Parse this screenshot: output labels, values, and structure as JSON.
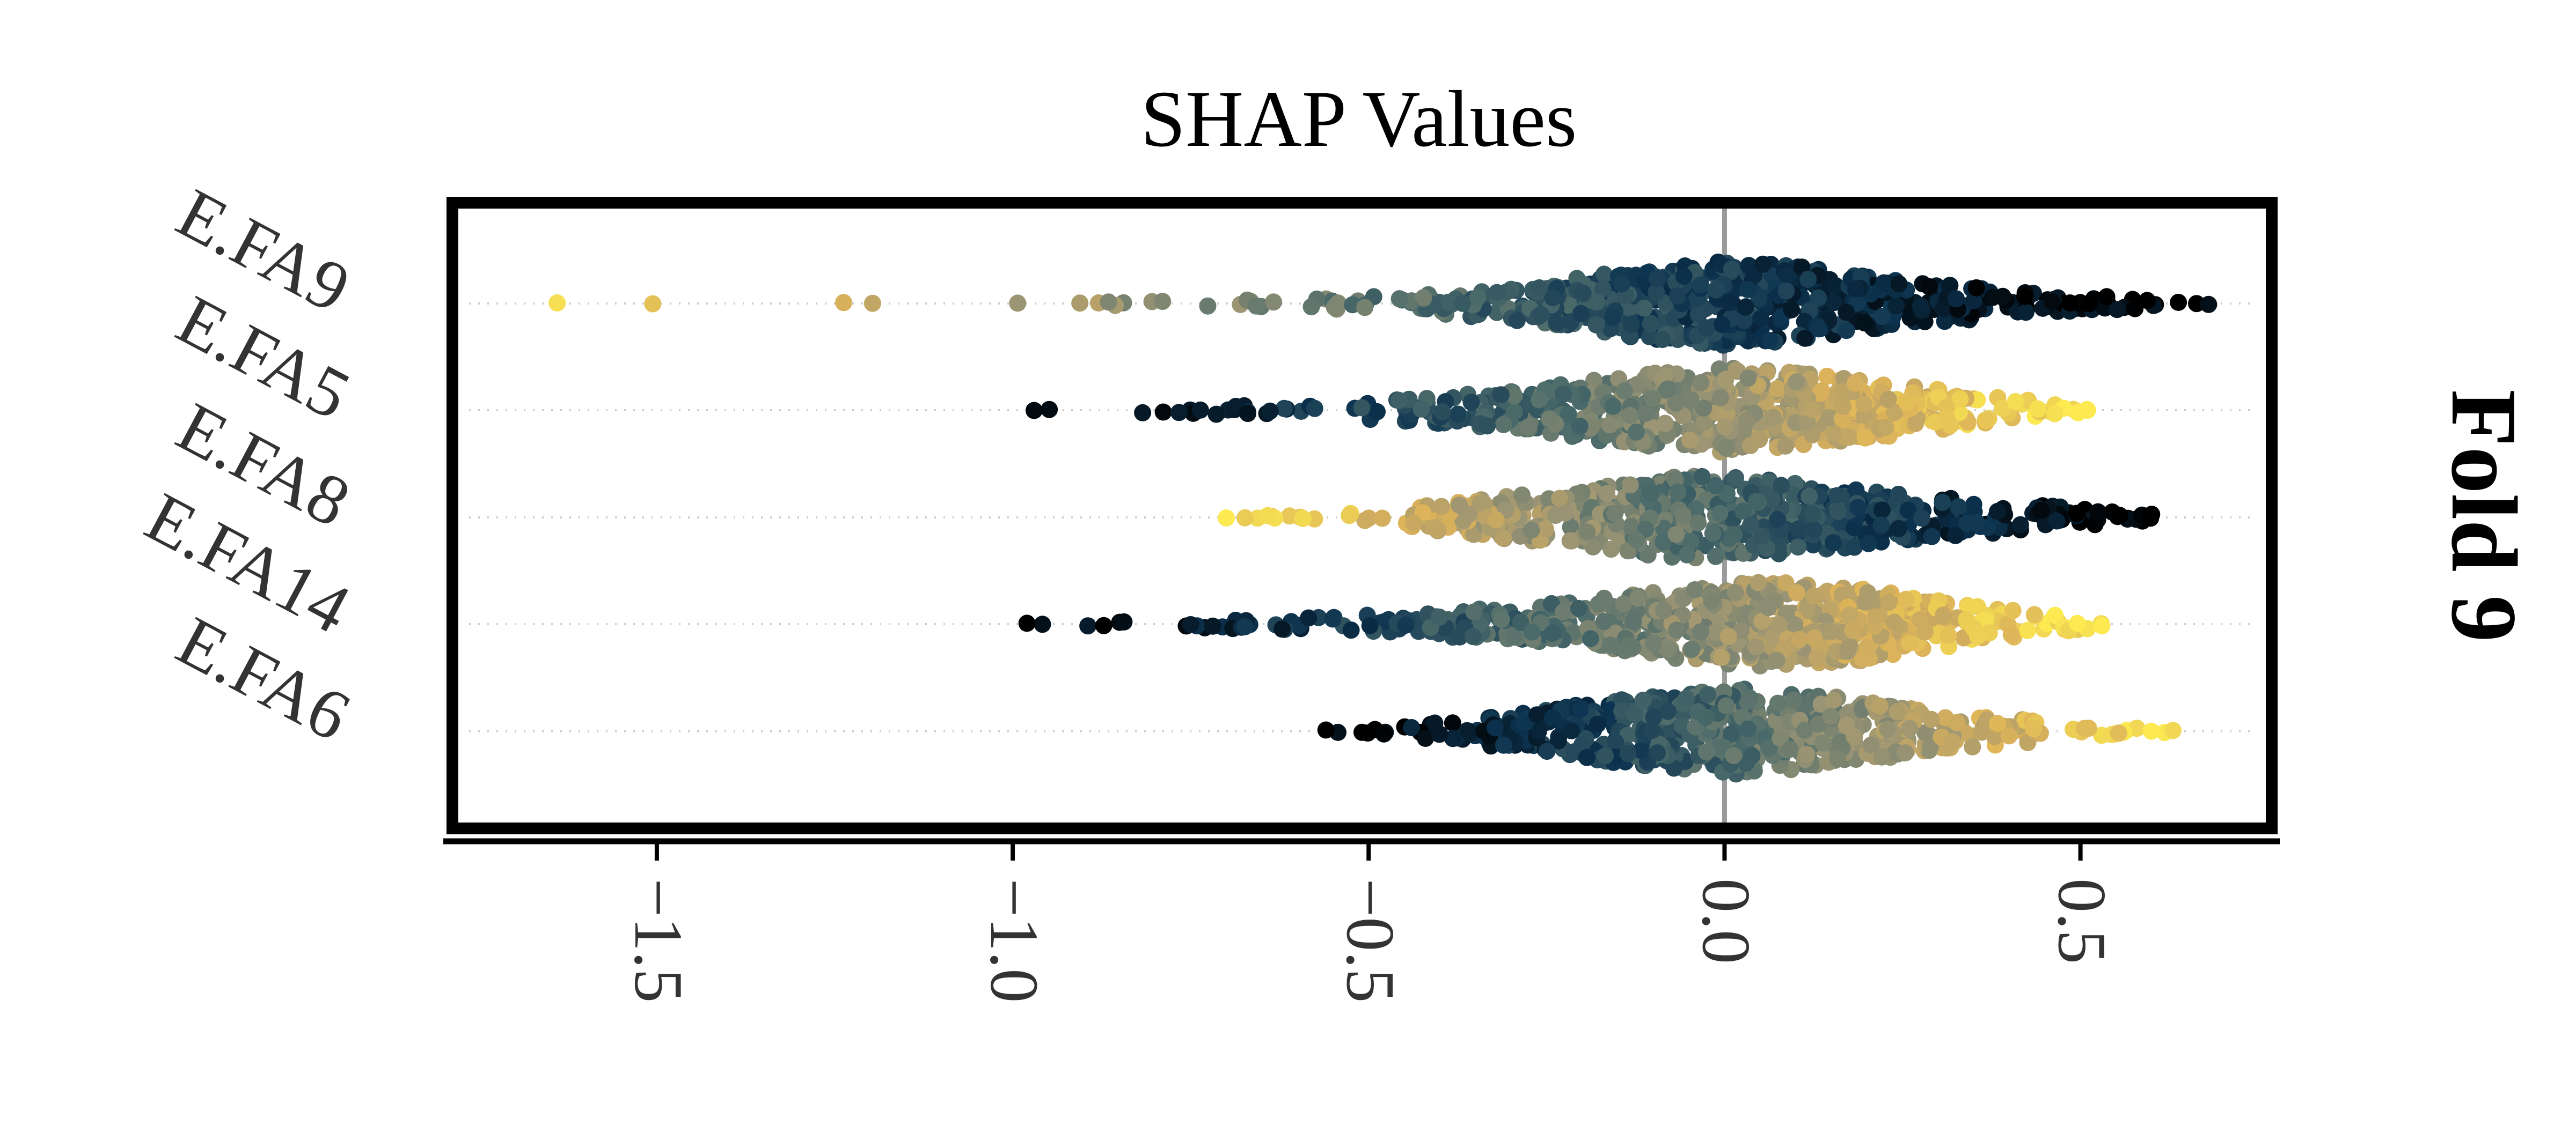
{
  "chart_data": {
    "type": "scatter",
    "kind": "shap-beeswarm",
    "title": "SHAP Values",
    "side_label": "Fold 9",
    "xlabel": "",
    "ylabel": "",
    "xlim": [
      -1.8,
      0.78
    ],
    "xticks": [
      -1.5,
      -1.0,
      -0.5,
      0.0,
      0.5
    ],
    "xtick_labels": [
      "−1.5",
      "−1.0",
      "−0.5",
      "0.0",
      "0.5"
    ],
    "reference_line_x": 0.0,
    "grid": false,
    "colormap": [
      "#000000",
      "#0c3350",
      "#4a6a6a",
      "#9a9474",
      "#dcb25a",
      "#fcea50"
    ],
    "features": [
      {
        "name": "E.FA9",
        "min": -1.64,
        "max": 0.68,
        "mode": 0.05,
        "density": [
          [
            -1.64,
            0.01
          ],
          [
            -1.13,
            0.01
          ],
          [
            -0.93,
            0.02
          ],
          [
            -0.8,
            0.03
          ],
          [
            -0.6,
            0.06
          ],
          [
            -0.45,
            0.12
          ],
          [
            -0.3,
            0.3
          ],
          [
            -0.15,
            0.7
          ],
          [
            0.0,
            1.0
          ],
          [
            0.1,
            0.85
          ],
          [
            0.25,
            0.45
          ],
          [
            0.45,
            0.15
          ],
          [
            0.68,
            0.02
          ]
        ],
        "color_direction": -1
      },
      {
        "name": "E.FA5",
        "min": -0.97,
        "max": 0.51,
        "mode": 0.0,
        "density": [
          [
            -0.97,
            0.01
          ],
          [
            -0.8,
            0.04
          ],
          [
            -0.6,
            0.08
          ],
          [
            -0.45,
            0.2
          ],
          [
            -0.3,
            0.35
          ],
          [
            -0.15,
            0.75
          ],
          [
            0.0,
            1.0
          ],
          [
            0.1,
            0.85
          ],
          [
            0.25,
            0.5
          ],
          [
            0.4,
            0.2
          ],
          [
            0.51,
            0.03
          ]
        ],
        "color_direction": 1
      },
      {
        "name": "E.FA8",
        "min": -0.7,
        "max": 0.6,
        "mode": -0.05,
        "density": [
          [
            -0.7,
            0.01
          ],
          [
            -0.5,
            0.06
          ],
          [
            -0.35,
            0.35
          ],
          [
            -0.2,
            0.6
          ],
          [
            -0.05,
            1.0
          ],
          [
            0.1,
            0.8
          ],
          [
            0.25,
            0.5
          ],
          [
            0.45,
            0.2
          ],
          [
            0.6,
            0.04
          ]
        ],
        "color_direction": -1
      },
      {
        "name": "E.FA14",
        "min": -0.98,
        "max": 0.53,
        "mode": 0.05,
        "density": [
          [
            -0.98,
            0.01
          ],
          [
            -0.6,
            0.08
          ],
          [
            -0.4,
            0.22
          ],
          [
            -0.2,
            0.45
          ],
          [
            -0.05,
            0.85
          ],
          [
            0.05,
            1.0
          ],
          [
            0.18,
            0.85
          ],
          [
            0.35,
            0.35
          ],
          [
            0.53,
            0.05
          ]
        ],
        "color_direction": 1
      },
      {
        "name": "E.FA6",
        "min": -0.56,
        "max": 0.63,
        "mode": 0.02,
        "density": [
          [
            -0.56,
            0.02
          ],
          [
            -0.45,
            0.1
          ],
          [
            -0.3,
            0.3
          ],
          [
            -0.15,
            0.7
          ],
          [
            0.02,
            1.0
          ],
          [
            0.15,
            0.8
          ],
          [
            0.3,
            0.35
          ],
          [
            0.5,
            0.1
          ],
          [
            0.63,
            0.02
          ]
        ],
        "color_direction": 1
      }
    ]
  }
}
